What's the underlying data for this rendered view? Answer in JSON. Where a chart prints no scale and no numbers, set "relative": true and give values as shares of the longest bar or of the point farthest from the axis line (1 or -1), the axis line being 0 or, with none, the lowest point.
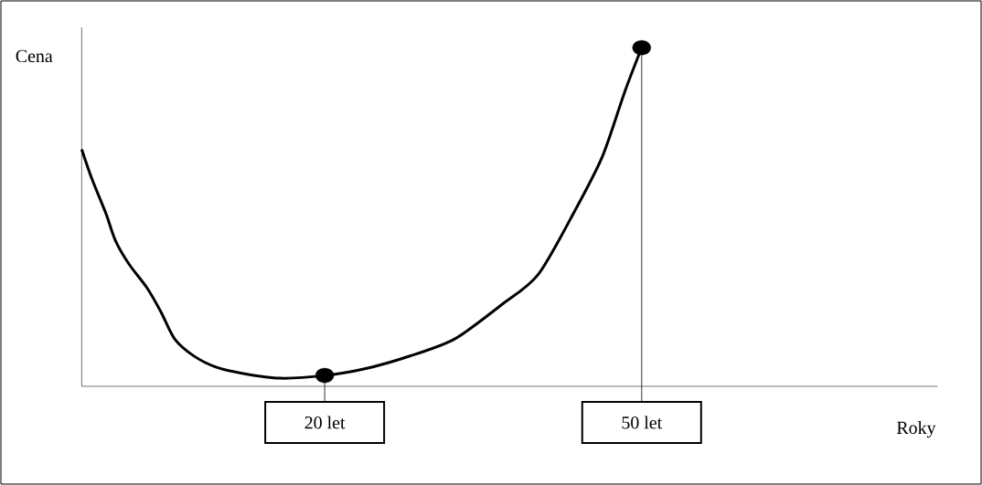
{
  "chart_data": {
    "type": "line",
    "relative": true,
    "xlabel": "Roky",
    "ylabel": "Cena",
    "xlim": [
      -3,
      78
    ],
    "xticks": [
      {
        "value": 20,
        "label": "20 let"
      },
      {
        "value": 50,
        "label": "50 let"
      }
    ],
    "series": [
      {
        "color": "#000000",
        "marker": "none",
        "x": [
          -3,
          -2,
          -0.7,
          0.2,
          1.5,
          3.2,
          4.5,
          5.8,
          7.6,
          9.7,
          12.3,
          15.8,
          20,
          23.7,
          28,
          32.3,
          36.7,
          40.2,
          43.7,
          46.3,
          48.4,
          50
        ],
        "values": [
          0.7,
          0.61,
          0.51,
          0.43,
          0.36,
          0.29,
          0.22,
          0.14,
          0.09,
          0.057,
          0.038,
          0.024,
          0.032,
          0.051,
          0.089,
          0.14,
          0.24,
          0.33,
          0.52,
          0.68,
          0.87,
          1.0
        ]
      },
      {
        "type": "scatter",
        "color": "#000000",
        "marker": "circle",
        "x": [
          20,
          50
        ],
        "values": [
          0.032,
          1.0
        ]
      }
    ]
  }
}
